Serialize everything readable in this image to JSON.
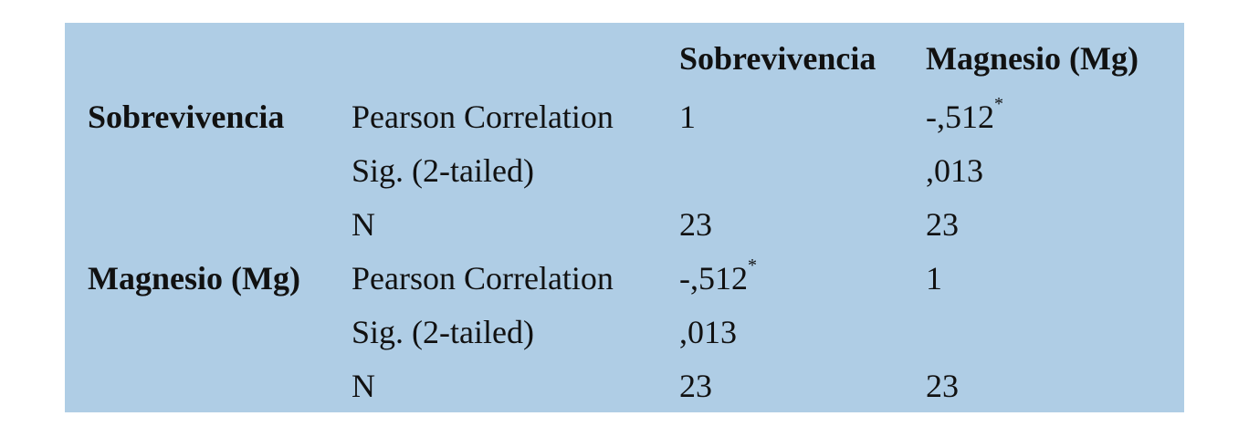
{
  "table": {
    "columns": [
      "",
      "",
      "Sobrevivencia",
      "Magnesio (Mg)"
    ],
    "rows": [
      {
        "variable": "Sobrevivencia",
        "statistic": "Pearson Correlation",
        "values": [
          "1",
          "-,512"
        ],
        "marks": [
          "",
          "*"
        ]
      },
      {
        "variable": "",
        "statistic": "Sig. (2-tailed)",
        "values": [
          "",
          ",013"
        ],
        "marks": [
          "",
          ""
        ]
      },
      {
        "variable": "",
        "statistic": "N",
        "values": [
          "23",
          "23"
        ],
        "marks": [
          "",
          ""
        ]
      },
      {
        "variable": "Magnesio (Mg)",
        "statistic": "Pearson Correlation",
        "values": [
          "-,512",
          "1"
        ],
        "marks": [
          "*",
          ""
        ]
      },
      {
        "variable": "",
        "statistic": "Sig. (2-tailed)",
        "values": [
          ",013",
          ""
        ],
        "marks": [
          "",
          ""
        ]
      },
      {
        "variable": "",
        "statistic": "N",
        "values": [
          "23",
          "23"
        ],
        "marks": [
          "",
          ""
        ]
      }
    ]
  },
  "colors": {
    "background": "#afcde5",
    "text": "#111111"
  }
}
